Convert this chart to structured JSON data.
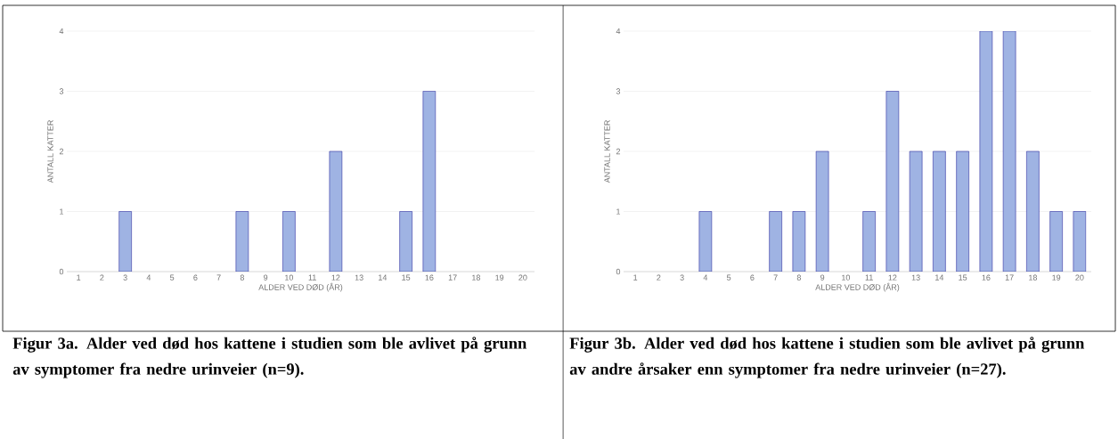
{
  "chart_data": [
    {
      "type": "bar",
      "categories": [
        "1",
        "2",
        "3",
        "4",
        "5",
        "6",
        "7",
        "8",
        "9",
        "10",
        "11",
        "12",
        "13",
        "14",
        "15",
        "16",
        "17",
        "18",
        "19",
        "20"
      ],
      "values": [
        0,
        0,
        1,
        0,
        0,
        0,
        0,
        1,
        0,
        1,
        0,
        2,
        0,
        0,
        1,
        3,
        0,
        0,
        0,
        0
      ],
      "color": "#9fb3e3",
      "ylim": [
        0,
        4
      ],
      "yticks": [
        0,
        1,
        2,
        3,
        4
      ],
      "grid": "y",
      "xlabel": "ALDER VED DØD (ÅR)",
      "ylabel": "ANTALL KATTER",
      "annotations": [
        "Figur 3a. Alder ved død hos kattene i studien som ble avlivet på grunn av symptomer fra nedre urinveier (n=9)."
      ]
    },
    {
      "type": "bar",
      "categories": [
        "1",
        "2",
        "3",
        "4",
        "5",
        "6",
        "7",
        "8",
        "9",
        "10",
        "11",
        "12",
        "13",
        "14",
        "15",
        "16",
        "17",
        "18",
        "19",
        "20"
      ],
      "values": [
        0,
        0,
        0,
        1,
        0,
        0,
        1,
        1,
        2,
        0,
        1,
        3,
        2,
        2,
        2,
        4,
        4,
        2,
        1,
        1
      ],
      "color": "#9fb3e3",
      "ylim": [
        0,
        4
      ],
      "yticks": [
        0,
        1,
        2,
        3,
        4
      ],
      "grid": "y",
      "xlabel": "ALDER VED DØD (ÅR)",
      "ylabel": "ANTALL KATTER",
      "annotations": [
        "Figur 3b. Alder ved død hos kattene i studien som ble avlivet på grunn av andre årsaker enn symptomer fra nedre urinveier (n=27)."
      ]
    }
  ]
}
